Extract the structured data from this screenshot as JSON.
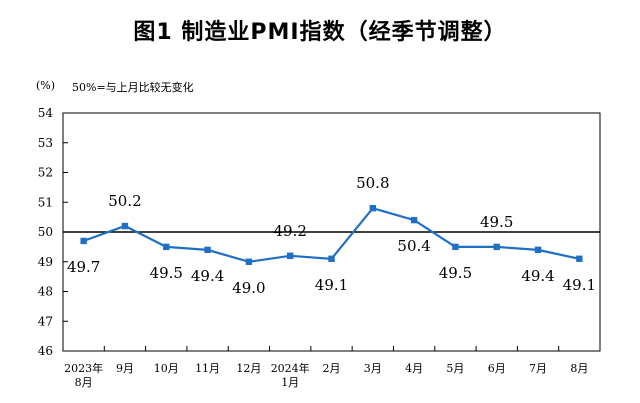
{
  "chart_data": {
    "type": "line",
    "title": "图1  制造业PMI指数（经季节调整）",
    "unit_label": "(%)",
    "note": "50%=与上月比较无变化",
    "ylim": [
      46,
      54
    ],
    "yticks": [
      46,
      47,
      48,
      49,
      50,
      51,
      52,
      53,
      54
    ],
    "reference_line": 50,
    "categories": [
      [
        "2023年",
        "8月"
      ],
      [
        "9月"
      ],
      [
        "10月"
      ],
      [
        "11月"
      ],
      [
        "12月"
      ],
      [
        "2024年",
        "1月"
      ],
      [
        "2月"
      ],
      [
        "3月"
      ],
      [
        "4月"
      ],
      [
        "5月"
      ],
      [
        "6月"
      ],
      [
        "7月"
      ],
      [
        "8月"
      ]
    ],
    "series": [
      {
        "values": [
          49.7,
          50.2,
          49.5,
          49.4,
          49.0,
          49.2,
          49.1,
          50.8,
          50.4,
          49.5,
          49.5,
          49.4,
          49.1
        ],
        "labels": [
          "49.7",
          "50.2",
          "49.5",
          "49.4",
          "49.0",
          "49.2",
          "49.1",
          "50.8",
          "50.4",
          "49.5",
          "49.5",
          "49.4",
          "49.1"
        ],
        "color": "#1f6fc5"
      }
    ],
    "grid": false,
    "legend": "none"
  }
}
